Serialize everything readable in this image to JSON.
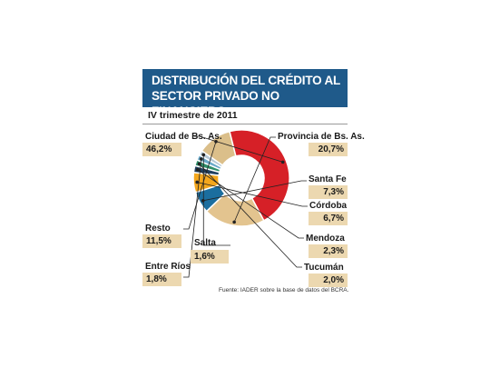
{
  "title_lines": [
    "DISTRIBUCIÓN DEL CRÉDITO AL",
    "SECTOR PRIVADO NO FINANCIERO"
  ],
  "subtitle": "IV trimestre de 2011",
  "source": "Fuente: IADER sobre la base de datos del BCRA.",
  "colors": {
    "title_bg": "#1f5a8a",
    "value_box": "#ecd8b0",
    "ciudad": "#d62027",
    "provincia": "#e3c48f",
    "santa_fe": "#1b6e9f",
    "cordoba": "#f4a71d",
    "mendoza": "#1f3f5f",
    "tucuman": "#2f8f6a",
    "entre_rios": "#6aa9c9",
    "salta": "#b5c8d4",
    "resto": "#dbbf8a"
  },
  "chart_data": {
    "type": "pie",
    "variant": "donut",
    "title": "DISTRIBUCIÓN DEL CRÉDITO AL SECTOR PRIVADO NO FINANCIERO",
    "subtitle": "IV trimestre de 2011",
    "slices": [
      {
        "name": "Ciudad de Bs. As.",
        "value": 46.2,
        "label": "46,2%",
        "color": "#d62027"
      },
      {
        "name": "Provincia de Bs. As.",
        "value": 20.7,
        "label": "20,7%",
        "color": "#e3c48f"
      },
      {
        "name": "Santa Fe",
        "value": 7.3,
        "label": "7,3%",
        "color": "#1b6e9f"
      },
      {
        "name": "Córdoba",
        "value": 6.7,
        "label": "6,7%",
        "color": "#f4a71d"
      },
      {
        "name": "Mendoza",
        "value": 2.3,
        "label": "2,3%",
        "color": "#1f3f5f"
      },
      {
        "name": "Tucumán",
        "value": 2.0,
        "label": "2,0%",
        "color": "#2f8f6a"
      },
      {
        "name": "Entre Ríos",
        "value": 1.8,
        "label": "1,8%",
        "color": "#6aa9c9"
      },
      {
        "name": "Salta",
        "value": 1.6,
        "label": "1,6%",
        "color": "#b5c8d4"
      },
      {
        "name": "Resto",
        "value": 11.5,
        "label": "11,5%",
        "color": "#dbbf8a"
      }
    ]
  }
}
